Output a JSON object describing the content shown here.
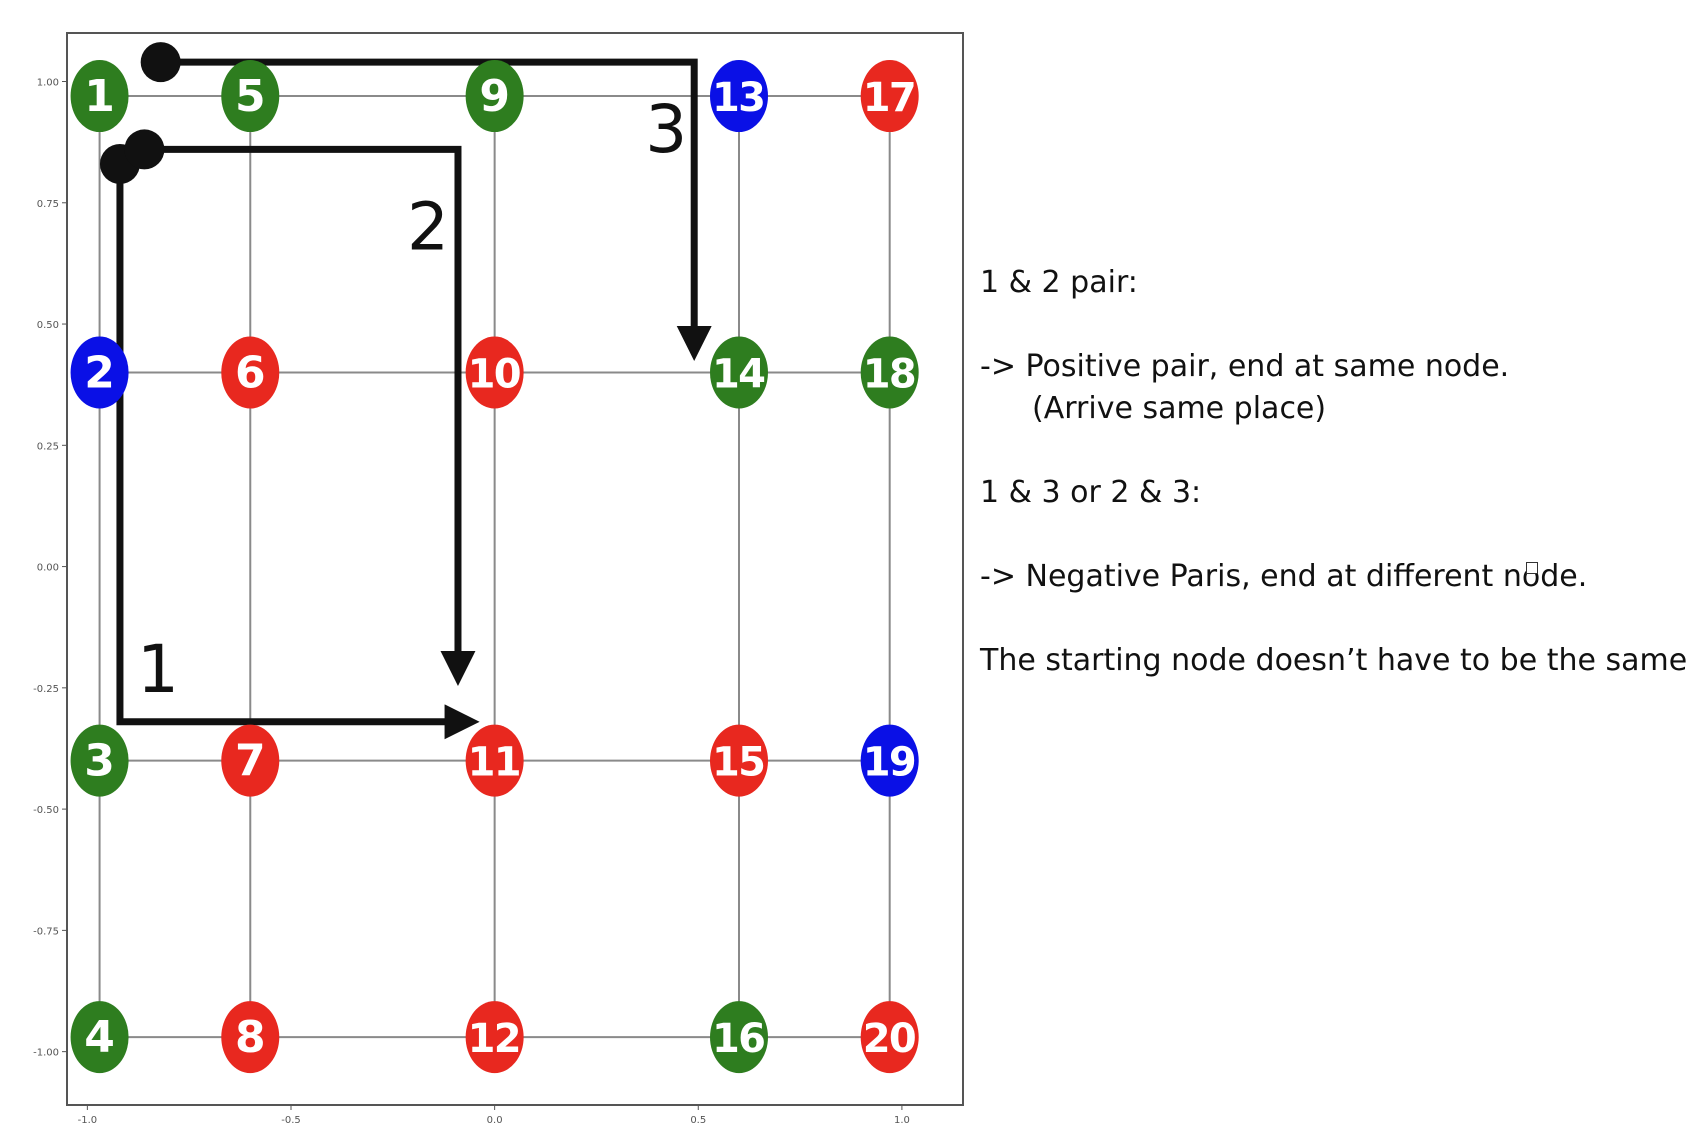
{
  "chart_data": {
    "type": "scatter",
    "xlim": [
      -1.05,
      1.15
    ],
    "ylim": [
      -1.11,
      1.1
    ],
    "x_ticks": [
      "-1.0",
      "-0.5",
      "0.0",
      "0.5",
      "1.0"
    ],
    "y_ticks": [
      "1.00",
      "0.75",
      "0.50",
      "0.25",
      "0.00",
      "-0.25",
      "-0.50",
      "-0.75",
      "-1.00"
    ],
    "grid": true,
    "columns_x": [
      -0.97,
      -0.6,
      0.0,
      0.6,
      0.97
    ],
    "rows_y": [
      0.97,
      0.4,
      -0.4,
      -0.97
    ],
    "colors": {
      "green": "#2e7d1f",
      "blue": "#0a10e6",
      "red": "#e8281f"
    },
    "nodes": [
      {
        "label": "1",
        "x": -0.97,
        "y": 0.97,
        "color": "green"
      },
      {
        "label": "2",
        "x": -0.97,
        "y": 0.4,
        "color": "blue"
      },
      {
        "label": "3",
        "x": -0.97,
        "y": -0.4,
        "color": "green"
      },
      {
        "label": "4",
        "x": -0.97,
        "y": -0.97,
        "color": "green"
      },
      {
        "label": "5",
        "x": -0.6,
        "y": 0.97,
        "color": "green"
      },
      {
        "label": "6",
        "x": -0.6,
        "y": 0.4,
        "color": "red"
      },
      {
        "label": "7",
        "x": -0.6,
        "y": -0.4,
        "color": "red"
      },
      {
        "label": "8",
        "x": -0.6,
        "y": -0.97,
        "color": "red"
      },
      {
        "label": "9",
        "x": 0.0,
        "y": 0.97,
        "color": "green"
      },
      {
        "label": "10",
        "x": 0.0,
        "y": 0.4,
        "color": "red"
      },
      {
        "label": "11",
        "x": 0.0,
        "y": -0.4,
        "color": "red"
      },
      {
        "label": "12",
        "x": 0.0,
        "y": -0.97,
        "color": "red"
      },
      {
        "label": "13",
        "x": 0.6,
        "y": 0.97,
        "color": "blue"
      },
      {
        "label": "14",
        "x": 0.6,
        "y": 0.4,
        "color": "green"
      },
      {
        "label": "15",
        "x": 0.6,
        "y": -0.4,
        "color": "red"
      },
      {
        "label": "16",
        "x": 0.6,
        "y": -0.97,
        "color": "green"
      },
      {
        "label": "17",
        "x": 0.97,
        "y": 0.97,
        "color": "red"
      },
      {
        "label": "18",
        "x": 0.97,
        "y": 0.4,
        "color": "green"
      },
      {
        "label": "19",
        "x": 0.97,
        "y": -0.4,
        "color": "blue"
      },
      {
        "label": "20",
        "x": 0.97,
        "y": -0.97,
        "color": "red"
      }
    ],
    "paths": [
      {
        "label": "1",
        "points": [
          [
            -0.92,
            0.83
          ],
          [
            -0.92,
            -0.32
          ],
          [
            -0.08,
            -0.32
          ]
        ]
      },
      {
        "label": "2",
        "points": [
          [
            -0.86,
            0.86
          ],
          [
            -0.09,
            0.86
          ],
          [
            -0.09,
            -0.21
          ]
        ]
      },
      {
        "label": "3",
        "points": [
          [
            -0.82,
            1.04
          ],
          [
            0.49,
            1.04
          ],
          [
            0.49,
            0.46
          ]
        ]
      }
    ]
  },
  "explanation": {
    "line1": "1 & 2 pair:",
    "line2": "-> Positive pair, end at same node.",
    "line3": "(Arrive same place)",
    "line4": "1 & 3 or 2 & 3:",
    "line5": "-> Negative Paris, end at different node.",
    "line6": "The starting node doesn’t have to be the same"
  }
}
